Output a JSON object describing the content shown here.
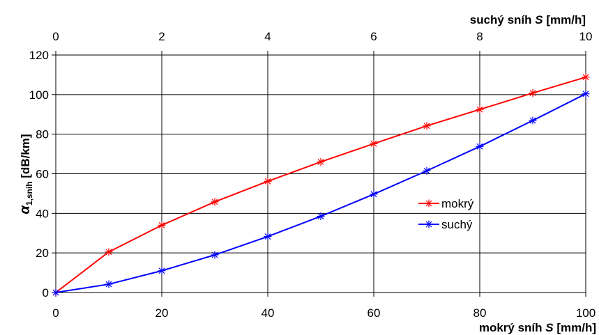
{
  "chart_data": {
    "type": "line",
    "x_bottom": {
      "label_main": "mokrý sníh ",
      "label_var": "S",
      "label_unit": " [mm/h]",
      "range": [
        0,
        100
      ],
      "ticks": [
        "0",
        "20",
        "40",
        "60",
        "80",
        "100"
      ]
    },
    "x_top": {
      "label_main": "suchý sníh ",
      "label_var": "S",
      "label_unit": " [mm/h]",
      "range": [
        0,
        10
      ],
      "ticks": [
        "0",
        "2",
        "4",
        "6",
        "8",
        "10"
      ]
    },
    "y": {
      "label_alpha": "α",
      "label_sub": "1,sníh",
      "label_unit": " [dB/km]",
      "range": [
        0,
        120
      ],
      "ticks": [
        "0",
        "20",
        "40",
        "60",
        "80",
        "100",
        "120"
      ]
    },
    "grid": true,
    "legend_position": "right-center",
    "series": [
      {
        "name": "mokrý",
        "color": "#ff0000",
        "x_axis": "bottom",
        "x": [
          0,
          10,
          20,
          30,
          40,
          50,
          60,
          70,
          80,
          90,
          100
        ],
        "y": [
          0,
          20.5,
          34,
          45.8,
          56.2,
          66,
          75.2,
          84.2,
          92.5,
          100.8,
          108.8
        ]
      },
      {
        "name": "suchý",
        "color": "#0000ff",
        "x_axis": "top",
        "x": [
          0,
          1,
          2,
          3,
          4,
          5,
          6,
          7,
          8,
          9,
          10
        ],
        "y": [
          0,
          4.2,
          11,
          19,
          28.3,
          38.5,
          49.7,
          61.5,
          73.8,
          86.9,
          100.4
        ]
      }
    ]
  }
}
